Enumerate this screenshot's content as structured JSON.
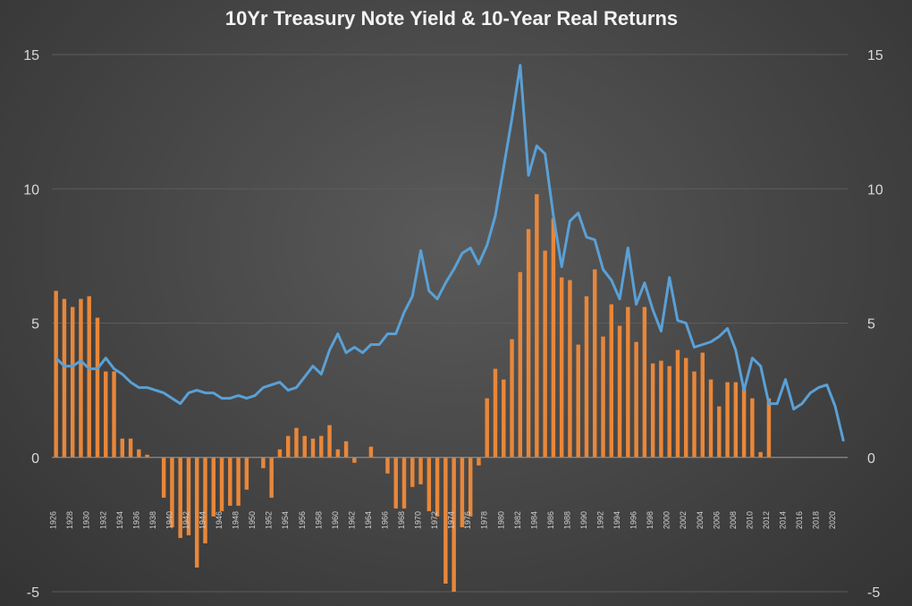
{
  "chart_data": {
    "type": "bar",
    "title": "10Yr Treasury Note Yield & 10-Year Real Returns",
    "ylim": [
      -5,
      15
    ],
    "yticks": [
      -5,
      0,
      5,
      10,
      15
    ],
    "years": [
      1926,
      1927,
      1928,
      1929,
      1930,
      1931,
      1932,
      1933,
      1934,
      1935,
      1936,
      1937,
      1938,
      1939,
      1940,
      1941,
      1942,
      1943,
      1944,
      1945,
      1946,
      1947,
      1948,
      1949,
      1950,
      1951,
      1952,
      1953,
      1954,
      1955,
      1956,
      1957,
      1958,
      1959,
      1960,
      1961,
      1962,
      1963,
      1964,
      1965,
      1966,
      1967,
      1968,
      1969,
      1970,
      1971,
      1972,
      1973,
      1974,
      1975,
      1976,
      1977,
      1978,
      1979,
      1980,
      1981,
      1982,
      1983,
      1984,
      1985,
      1986,
      1987,
      1988,
      1989,
      1990,
      1991,
      1992,
      1993,
      1994,
      1995,
      1996,
      1997,
      1998,
      1999,
      2000,
      2001,
      2002,
      2003,
      2004,
      2005,
      2006,
      2007,
      2008,
      2009,
      2010,
      2011,
      2012,
      2013,
      2014,
      2015,
      2016,
      2017,
      2018,
      2019,
      2020,
      2021
    ],
    "x_tick_labels": [
      "1926",
      "1928",
      "1930",
      "1932",
      "1934",
      "1936",
      "1938",
      "1940",
      "1942",
      "1944",
      "1946",
      "1948",
      "1950",
      "1952",
      "1954",
      "1956",
      "1958",
      "1960",
      "1962",
      "1964",
      "1966",
      "1968",
      "1970",
      "1972",
      "1974",
      "1976",
      "1978",
      "1980",
      "1982",
      "1984",
      "1986",
      "1988",
      "1990",
      "1992",
      "1994",
      "1996",
      "1998",
      "2000",
      "2002",
      "2004",
      "2006",
      "2008",
      "2010",
      "2012",
      "2014",
      "2016",
      "2018",
      "2020"
    ],
    "series": [
      {
        "type": "bar",
        "color": "#e8873a",
        "values": [
          6.2,
          5.9,
          5.6,
          5.9,
          6.0,
          5.2,
          3.2,
          3.2,
          0.7,
          0.7,
          0.3,
          0.1,
          0,
          -1.5,
          -2.6,
          -3.0,
          -2.9,
          -4.1,
          -3.2,
          -2.2,
          -2.0,
          -1.8,
          -1.8,
          -1.2,
          0,
          -0.4,
          -1.5,
          0.3,
          0.8,
          1.1,
          0.8,
          0.7,
          0.8,
          1.2,
          0.3,
          0.6,
          -0.2,
          0,
          0.4,
          0,
          -0.6,
          -1.9,
          -1.9,
          -1.1,
          -1.0,
          -2.0,
          -2.2,
          -4.7,
          -5.0,
          -2.6,
          -2.2,
          -0.3,
          2.2,
          3.3,
          2.9,
          4.4,
          6.9,
          8.5,
          9.8,
          7.7,
          8.9,
          6.7,
          6.6,
          4.2,
          6.0,
          7.0,
          4.5,
          5.7,
          4.9,
          5.6,
          4.3,
          5.6,
          3.5,
          3.6,
          3.4,
          4.0,
          3.7,
          3.2,
          3.9,
          2.9,
          1.9,
          2.8,
          2.8,
          2.7,
          2.2,
          0.2,
          2.2,
          0,
          0,
          0,
          0,
          0,
          0,
          0,
          0,
          0
        ]
      },
      {
        "type": "line",
        "color": "#5aa0d6",
        "values": [
          3.7,
          3.4,
          3.4,
          3.6,
          3.3,
          3.3,
          3.7,
          3.3,
          3.1,
          2.8,
          2.6,
          2.6,
          2.5,
          2.4,
          2.2,
          2.0,
          2.4,
          2.5,
          2.4,
          2.4,
          2.2,
          2.2,
          2.3,
          2.2,
          2.3,
          2.6,
          2.7,
          2.8,
          2.5,
          2.6,
          3.0,
          3.4,
          3.1,
          4.0,
          4.6,
          3.9,
          4.1,
          3.9,
          4.2,
          4.2,
          4.6,
          4.6,
          5.4,
          6.0,
          7.7,
          6.2,
          5.9,
          6.5,
          7.0,
          7.6,
          7.8,
          7.2,
          7.9,
          9.0,
          10.8,
          12.6,
          14.6,
          10.5,
          11.6,
          11.3,
          9.0,
          7.1,
          8.8,
          9.1,
          8.2,
          8.1,
          7.0,
          6.6,
          5.9,
          7.8,
          5.7,
          6.5,
          5.5,
          4.7,
          6.7,
          5.1,
          5.0,
          4.1,
          4.2,
          4.3,
          4.5,
          4.8,
          4.0,
          2.5,
          3.7,
          3.4,
          2.0,
          2.0,
          2.9,
          1.8,
          2.0,
          2.4,
          2.6,
          2.7,
          1.9,
          0.6
        ]
      }
    ]
  }
}
